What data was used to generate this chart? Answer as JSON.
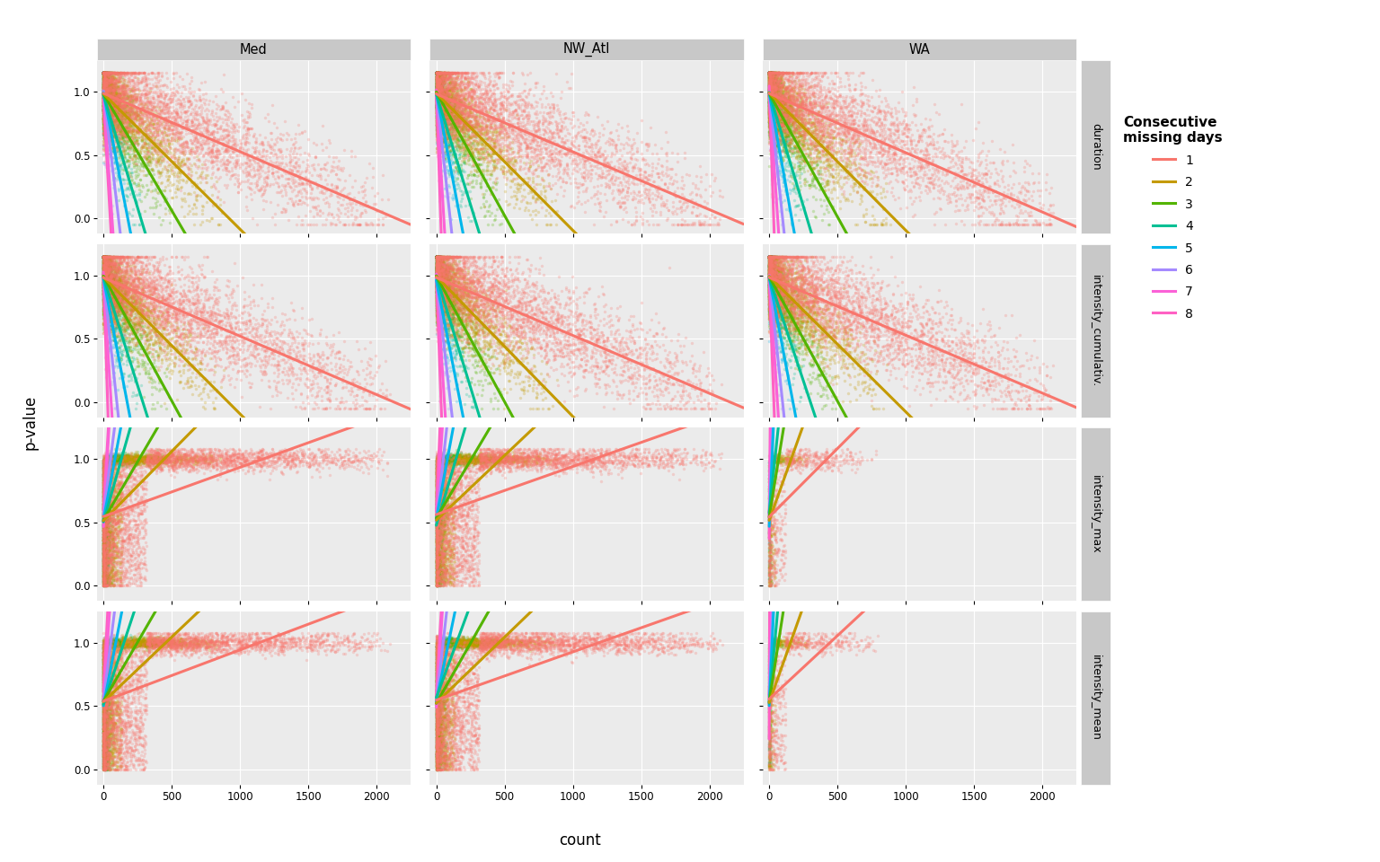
{
  "cols": [
    "Med",
    "NW_Atl",
    "WA"
  ],
  "rows": [
    "duration",
    "intensity_cumulativ.",
    "intensity_max",
    "intensity_mean"
  ],
  "missing_days": [
    1,
    2,
    3,
    4,
    5,
    6,
    7,
    8
  ],
  "colors": {
    "1": "#F8766D",
    "2": "#C49A00",
    "3": "#53B400",
    "4": "#00C094",
    "5": "#00B6EB",
    "6": "#A58AFF",
    "7": "#FB61D7",
    "8": "#FF61C3"
  },
  "xlim": [
    -50,
    2250
  ],
  "ylim": [
    -0.12,
    1.25
  ],
  "yticks": [
    0.0,
    0.5,
    1.0
  ],
  "xticks": [
    0,
    500,
    1000,
    1500,
    2000
  ],
  "panel_background": "#EBEBEB",
  "grid_color": "white",
  "strip_bg": "#C8C8C8",
  "xlabel": "count",
  "ylabel": "p-value",
  "legend_title": "Consecutive\nmissing days",
  "scatter_alpha": 0.25,
  "line_width": 2.2,
  "point_size": 6
}
